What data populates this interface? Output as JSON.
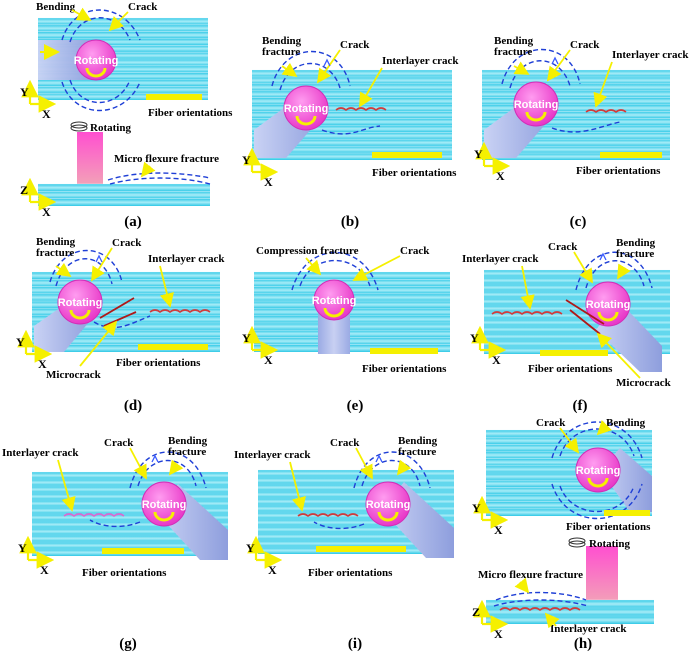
{
  "colors": {
    "cyan": "#2ec8e6",
    "cyan_light": "#a8ecf7",
    "cyan_dark": "#1a8fb4",
    "magenta": "#e838c8",
    "tool_body": "#a9b6e8",
    "yellow": "#f5f000",
    "crack_blue": "#1f3fd6",
    "interlayer_red": "#d23b3b",
    "microcrack_red": "#b01818"
  },
  "labels": {
    "bending": "Bending",
    "bending_fracture": "Bending fracture",
    "crack": "Crack",
    "interlayer_crack": "Interlayer crack",
    "compression_fracture": "Compression fracture",
    "microcrack": "Microcrack",
    "micro_flexure_fracture": "Micro flexure fracture",
    "fiber_orientations": "Fiber orientations",
    "rotating": "Rotating",
    "axis_x": "X",
    "axis_y": "Y",
    "axis_z": "Z"
  },
  "panels": [
    {
      "id": "a",
      "caption": "(a)"
    },
    {
      "id": "b",
      "caption": "(b)"
    },
    {
      "id": "c",
      "caption": "(c)"
    },
    {
      "id": "d",
      "caption": "(d)"
    },
    {
      "id": "e",
      "caption": "(e)"
    },
    {
      "id": "f",
      "caption": "(f)"
    },
    {
      "id": "g",
      "caption": "(g)"
    },
    {
      "id": "i",
      "caption": "(i)"
    },
    {
      "id": "h",
      "caption": "(h)"
    }
  ]
}
